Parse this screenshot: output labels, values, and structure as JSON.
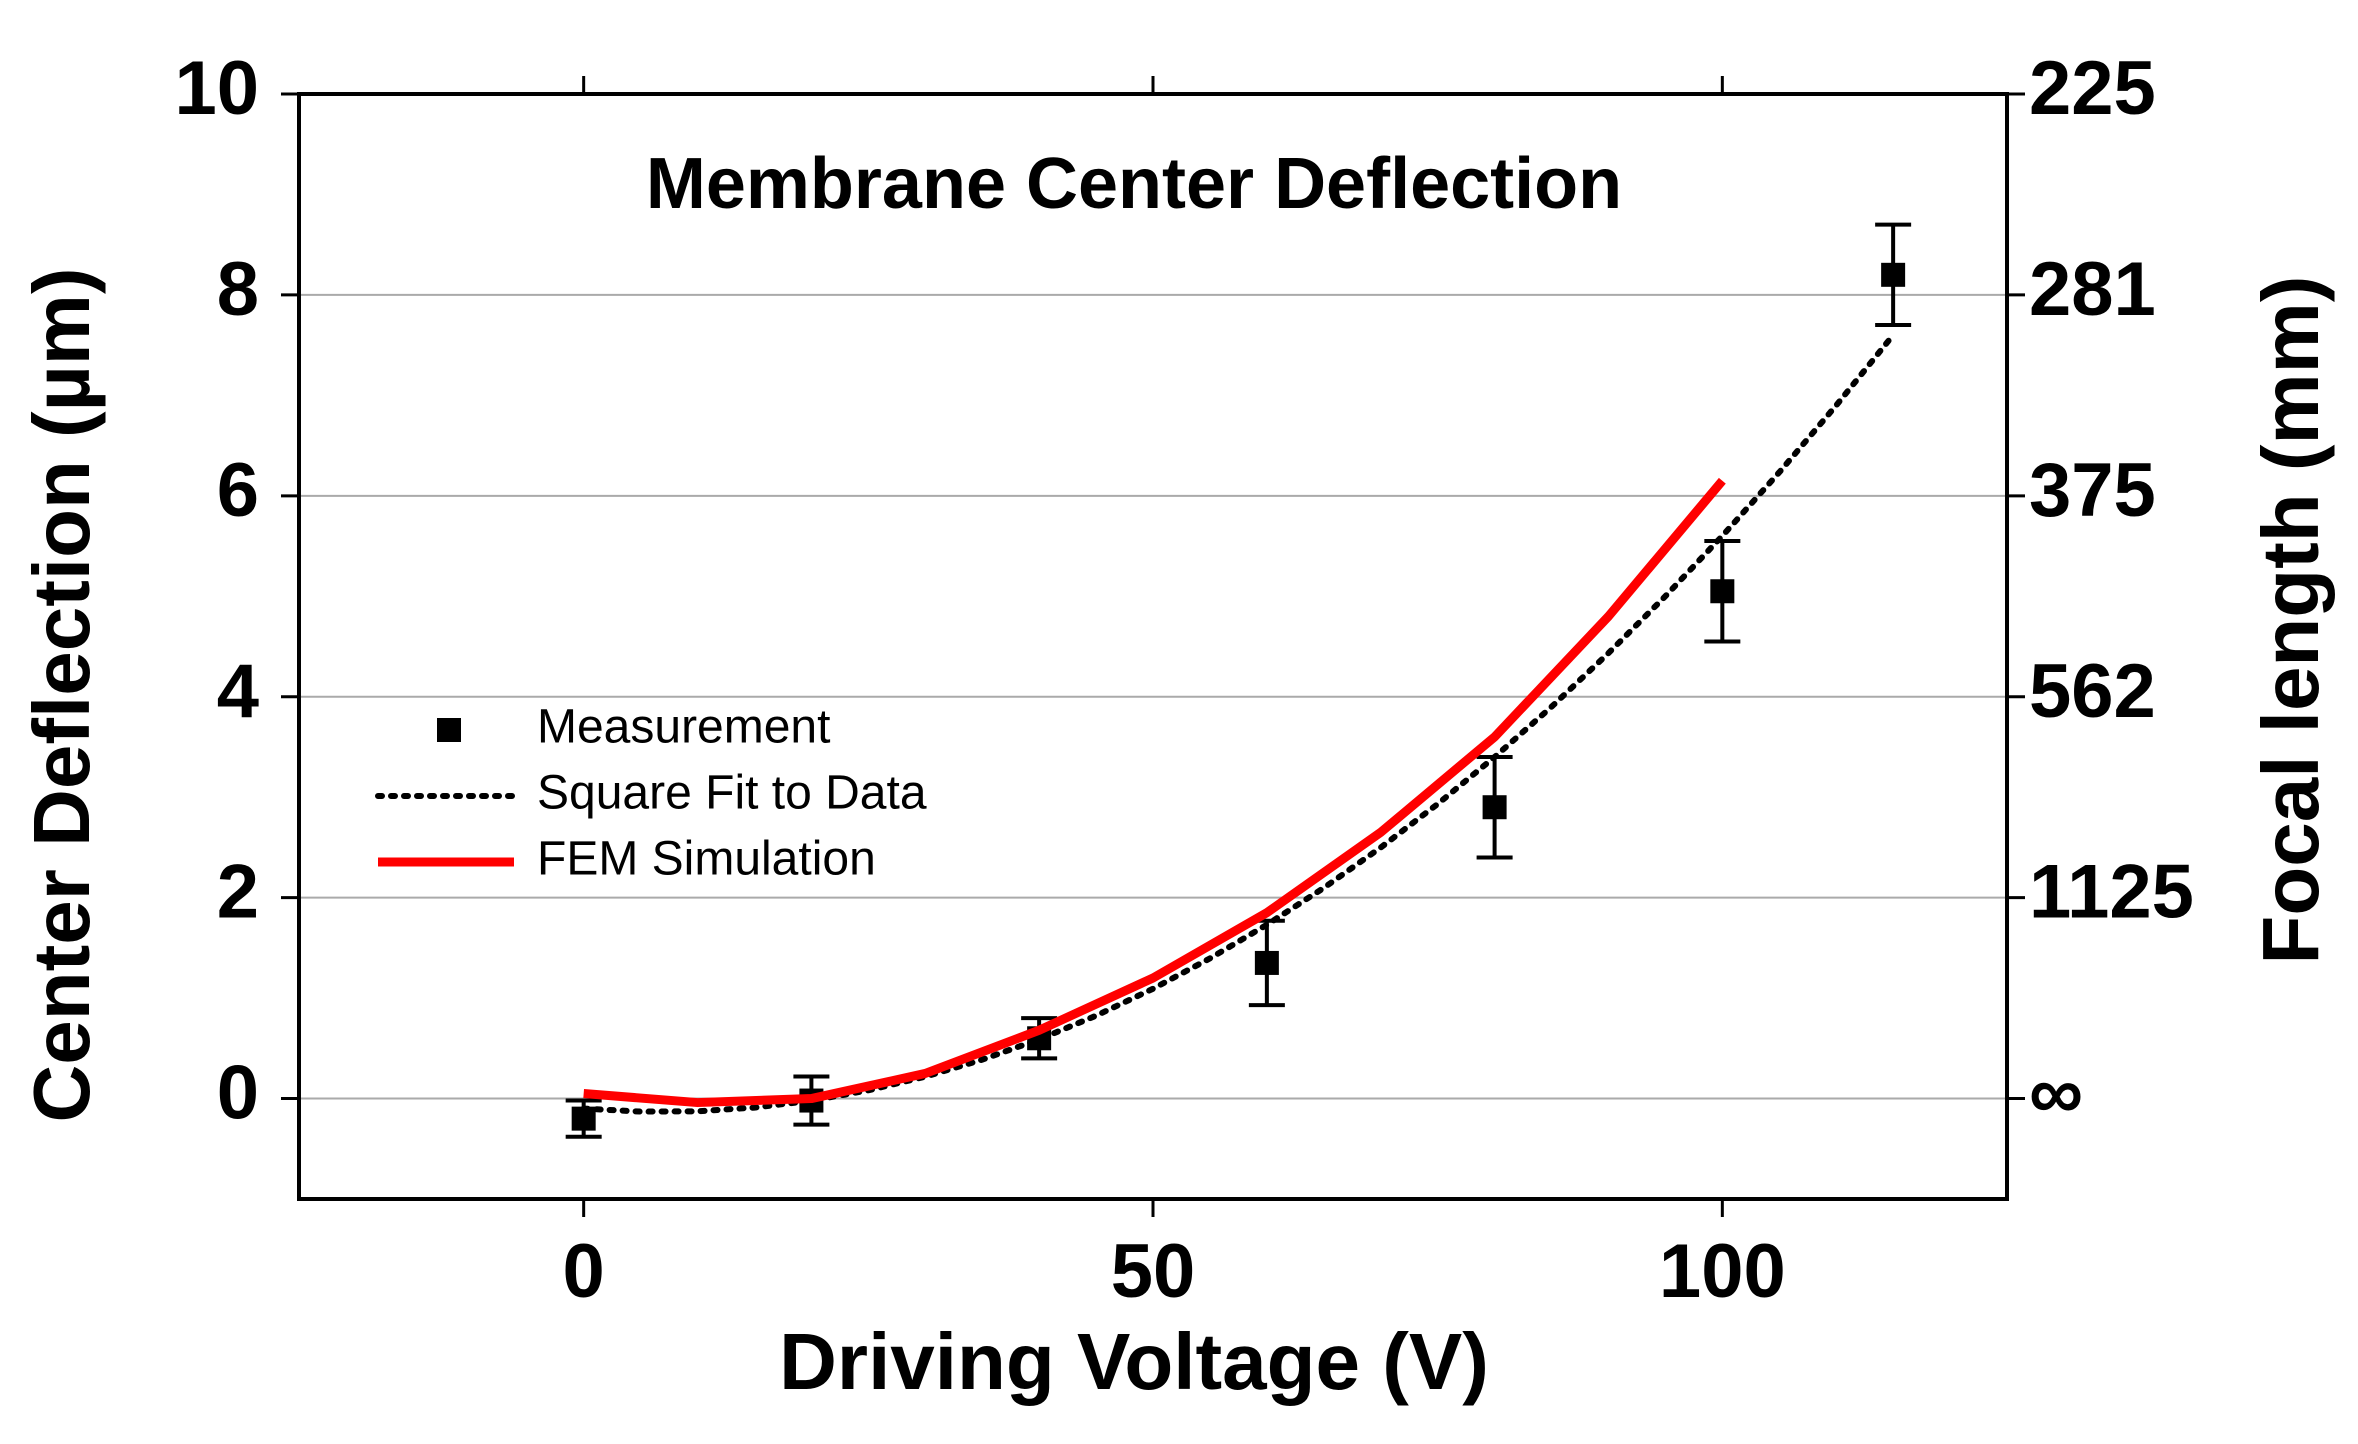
{
  "chart_data": {
    "type": "scatter",
    "title": "Membrane Center Deflection",
    "x_label": "Driving Voltage (V)",
    "y_label": "Center Deflection (µm)",
    "y2_label": "Focal length (mm)",
    "xlim": [
      -25,
      125
    ],
    "xticks": [
      0,
      50,
      100
    ],
    "ylim": [
      -1,
      10
    ],
    "yticks": [
      0,
      2,
      4,
      6,
      8,
      10
    ],
    "y2_tick_labels": [
      "∞",
      "1125",
      "562",
      "375",
      "281",
      "225"
    ],
    "grid": true,
    "legend": "left",
    "series": [
      {
        "name": "Measurement",
        "kind": "marker",
        "color": "#000000",
        "x": [
          0,
          20,
          40,
          60,
          80,
          100,
          115
        ],
        "values": [
          -0.2,
          -0.02,
          0.6,
          1.35,
          2.9,
          5.05,
          8.2
        ],
        "errors": [
          0.18,
          0.24,
          0.2,
          0.42,
          0.5,
          0.5,
          0.5
        ]
      },
      {
        "name": "Square Fit to Data",
        "kind": "dotted",
        "color": "#000000",
        "x": [
          0,
          5,
          10,
          15,
          20,
          25,
          30,
          35,
          40,
          45,
          50,
          55,
          60,
          65,
          70,
          75,
          80,
          85,
          90,
          95,
          100,
          105,
          110,
          115
        ],
        "values": [
          -0.1,
          -0.13,
          -0.127,
          -0.09,
          -0.021,
          0.082,
          0.218,
          0.387,
          0.589,
          0.825,
          1.093,
          1.395,
          1.73,
          2.097,
          2.499,
          2.932,
          3.4,
          3.9,
          4.434,
          5.001,
          5.601,
          6.234,
          6.9,
          7.6
        ]
      },
      {
        "name": "FEM Simulation",
        "kind": "line",
        "color": "#ff0000",
        "x": [
          0,
          10,
          20,
          30,
          40,
          50,
          60,
          70,
          80,
          90,
          100
        ],
        "values": [
          0.05,
          -0.04,
          0.0,
          0.25,
          0.68,
          1.2,
          1.85,
          2.65,
          3.6,
          4.8,
          6.15
        ]
      }
    ]
  }
}
